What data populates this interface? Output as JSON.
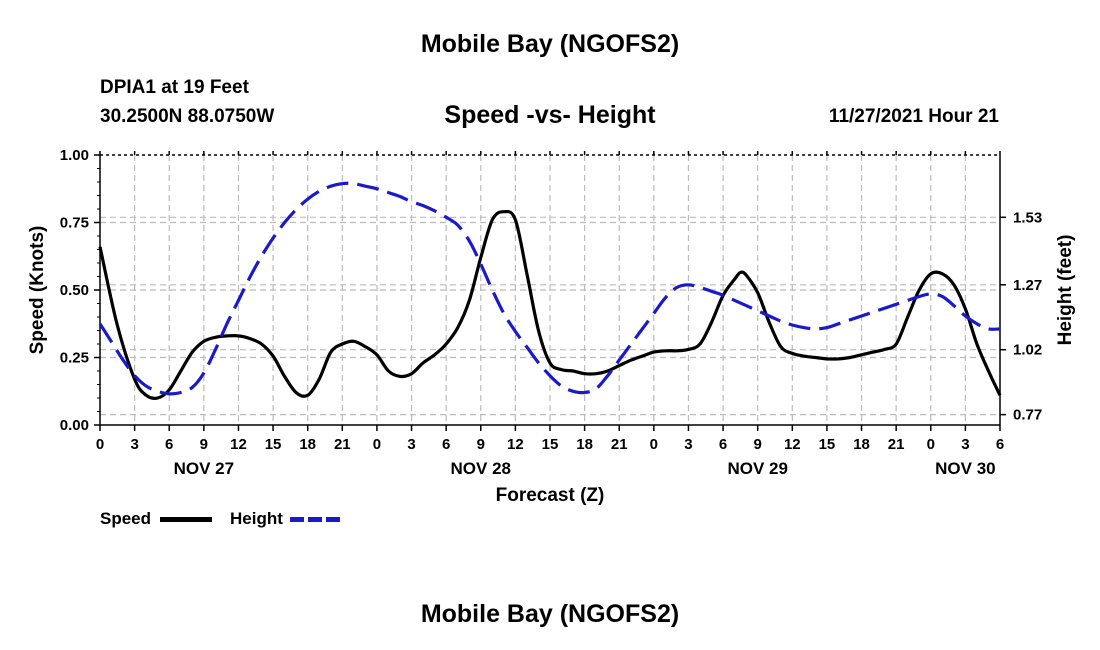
{
  "header": {
    "title": "Mobile Bay (NGOFS2)",
    "station": "DPIA1 at 19 Feet",
    "coords": "30.2500N  88.0750W",
    "chart_title": "Speed -vs- Height",
    "datetime": "11/27/2021 Hour 21"
  },
  "footer": {
    "title": "Mobile Bay (NGOFS2)"
  },
  "legend": {
    "speed_label": "Speed",
    "height_label": "Height"
  },
  "colors": {
    "speed": "#000000",
    "height": "#1a1acc",
    "grid": "#bbbbbb"
  },
  "chart_data": {
    "type": "line",
    "title": "Speed -vs- Height",
    "xlabel": "Forecast (Z)",
    "ylabel_left": "Speed (Knots)",
    "ylabel_right": "Height (feet)",
    "x_range_hours": [
      0,
      78
    ],
    "x_tick_labels": [
      "0",
      "3",
      "6",
      "9",
      "12",
      "15",
      "18",
      "21",
      "0",
      "3",
      "6",
      "9",
      "12",
      "15",
      "18",
      "21",
      "0",
      "3",
      "6",
      "9",
      "12",
      "15",
      "18",
      "21",
      "0",
      "3",
      "6"
    ],
    "date_labels": [
      {
        "label": "NOV 27",
        "hour": 9
      },
      {
        "label": "NOV 28",
        "hour": 33
      },
      {
        "label": "NOV 29",
        "hour": 57
      },
      {
        "label": "NOV 30",
        "hour": 75
      }
    ],
    "ylim_left": [
      0,
      1
    ],
    "y_left_ticks": [
      {
        "value": 0,
        "label": "0.00"
      },
      {
        "value": 0.25,
        "label": "0.25"
      },
      {
        "value": 0.5,
        "label": "0.50"
      },
      {
        "value": 0.75,
        "label": "0.75"
      },
      {
        "value": 1,
        "label": "1.00"
      }
    ],
    "ylim_right": [
      0.73,
      1.77
    ],
    "y_right_ticks": [
      {
        "value": 0.77,
        "label": "0.77"
      },
      {
        "value": 1.02,
        "label": "1.02"
      },
      {
        "value": 1.27,
        "label": "1.27"
      },
      {
        "value": 1.53,
        "label": "1.53"
      }
    ],
    "series": [
      {
        "name": "Speed",
        "axis": "left",
        "style": "solid",
        "x": [
          0,
          1.5,
          3,
          4,
          5,
          6,
          7,
          8,
          9,
          10,
          11,
          12,
          13,
          14,
          15,
          16,
          17,
          18,
          19,
          20,
          21,
          22,
          23,
          24,
          25,
          26,
          27,
          28,
          29,
          30,
          31,
          32,
          33,
          34,
          35,
          36,
          37,
          38,
          39,
          40,
          41,
          42,
          43,
          44,
          45,
          46,
          47,
          48,
          49,
          50,
          51,
          52,
          53,
          54,
          55,
          55.5,
          56,
          57,
          58,
          59,
          60,
          61,
          62,
          63,
          64,
          65,
          66,
          67,
          68,
          69,
          70,
          71,
          72,
          73,
          74,
          75,
          76,
          77,
          78
        ],
        "values": [
          0.66,
          0.37,
          0.17,
          0.11,
          0.1,
          0.13,
          0.2,
          0.27,
          0.31,
          0.325,
          0.33,
          0.33,
          0.32,
          0.3,
          0.255,
          0.18,
          0.12,
          0.11,
          0.17,
          0.27,
          0.3,
          0.31,
          0.29,
          0.26,
          0.2,
          0.18,
          0.19,
          0.23,
          0.26,
          0.3,
          0.36,
          0.46,
          0.62,
          0.76,
          0.79,
          0.76,
          0.56,
          0.35,
          0.23,
          0.205,
          0.2,
          0.19,
          0.19,
          0.2,
          0.22,
          0.24,
          0.255,
          0.27,
          0.275,
          0.275,
          0.28,
          0.3,
          0.38,
          0.48,
          0.54,
          0.565,
          0.555,
          0.49,
          0.38,
          0.29,
          0.265,
          0.255,
          0.25,
          0.245,
          0.245,
          0.25,
          0.26,
          0.27,
          0.28,
          0.3,
          0.4,
          0.5,
          0.56,
          0.56,
          0.52,
          0.43,
          0.3,
          0.2,
          0.11
        ]
      },
      {
        "name": "Height",
        "axis": "right",
        "style": "dashed",
        "x": [
          0,
          1,
          2,
          3,
          4,
          5,
          6,
          7,
          8,
          9,
          10,
          11,
          12,
          13,
          14,
          15,
          16,
          17,
          18,
          19,
          20,
          21,
          22,
          23,
          24,
          25,
          26,
          27,
          28,
          29,
          30,
          31,
          32,
          33,
          34,
          35,
          36,
          37,
          38,
          39,
          40,
          41,
          42,
          43,
          44,
          45,
          46,
          47,
          48,
          49,
          50,
          51,
          52,
          53,
          54,
          55,
          56,
          57,
          58,
          59,
          60,
          61,
          62,
          63,
          64,
          65,
          66,
          67,
          68,
          69,
          70,
          71,
          72,
          73,
          74,
          75,
          76,
          77,
          78
        ],
        "values": [
          1.12,
          1.05,
          0.98,
          0.92,
          0.88,
          0.86,
          0.85,
          0.855,
          0.875,
          0.93,
          1.02,
          1.12,
          1.21,
          1.3,
          1.38,
          1.45,
          1.51,
          1.56,
          1.6,
          1.63,
          1.65,
          1.66,
          1.66,
          1.65,
          1.64,
          1.625,
          1.61,
          1.59,
          1.575,
          1.555,
          1.53,
          1.5,
          1.44,
          1.35,
          1.25,
          1.16,
          1.09,
          1.03,
          0.97,
          0.92,
          0.88,
          0.86,
          0.855,
          0.87,
          0.92,
          0.98,
          1.04,
          1.1,
          1.16,
          1.22,
          1.26,
          1.27,
          1.26,
          1.245,
          1.23,
          1.21,
          1.19,
          1.17,
          1.15,
          1.13,
          1.115,
          1.105,
          1.1,
          1.105,
          1.12,
          1.135,
          1.15,
          1.165,
          1.18,
          1.195,
          1.21,
          1.225,
          1.235,
          1.225,
          1.19,
          1.15,
          1.12,
          1.1,
          1.1
        ]
      }
    ]
  }
}
